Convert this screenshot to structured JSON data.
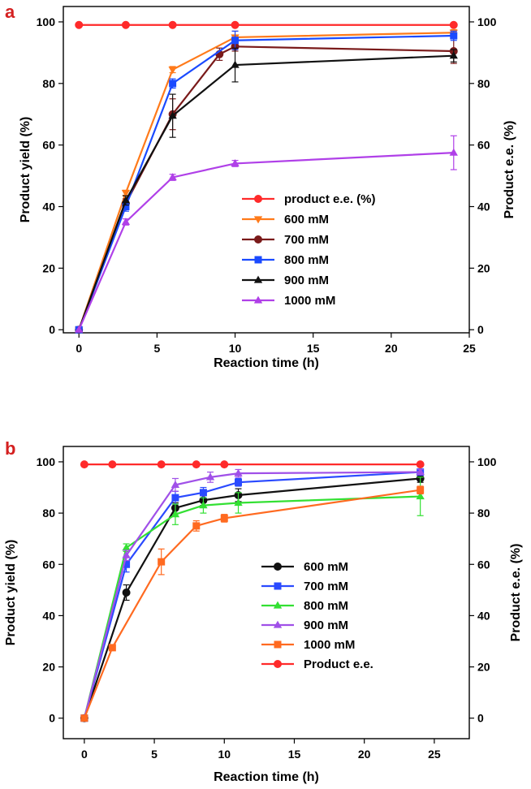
{
  "chart_data": [
    {
      "type": "line",
      "panel_label": "a",
      "xlabel": "Reaction time (h)",
      "ylabel": "Product yield (%)",
      "ylabel_right": "Product e.e. (%)",
      "xlim": [
        -1,
        25
      ],
      "ylim": [
        -1,
        105
      ],
      "xticks": [
        0,
        5,
        10,
        15,
        20,
        25
      ],
      "yticks": [
        0,
        20,
        40,
        60,
        80,
        100
      ],
      "yticks_right": [
        0,
        20,
        40,
        60,
        80,
        100
      ],
      "legend_position": "center-right",
      "series": [
        {
          "name": "product e.e. (%)",
          "color": "#ff2a2a",
          "marker": "circle",
          "x": [
            0,
            3,
            6,
            10,
            24
          ],
          "values": [
            99,
            99,
            99,
            99,
            99
          ],
          "err": [
            0,
            0,
            0,
            0,
            0
          ]
        },
        {
          "name": "600 mM",
          "color": "#ff7a1a",
          "marker": "triangle-down",
          "x": [
            0,
            3,
            6,
            10,
            24
          ],
          "values": [
            0,
            44.5,
            84.5,
            95,
            96.5
          ],
          "err": [
            0,
            0.8,
            1,
            2,
            1
          ]
        },
        {
          "name": "700 mM",
          "color": "#7a1a1a",
          "marker": "circle",
          "x": [
            0,
            3,
            6,
            9,
            10,
            24
          ],
          "values": [
            0,
            41,
            70,
            89.5,
            92,
            90.5
          ],
          "err": [
            0,
            1.5,
            5,
            2,
            1.5,
            4
          ]
        },
        {
          "name": "800 mM",
          "color": "#1a4aff",
          "marker": "square",
          "x": [
            0,
            3,
            6,
            10,
            24
          ],
          "values": [
            0,
            40,
            80,
            94,
            95.5
          ],
          "err": [
            0,
            1.5,
            1.5,
            3,
            1.5
          ]
        },
        {
          "name": "900 mM",
          "color": "#111111",
          "marker": "triangle-up",
          "x": [
            0,
            3,
            6,
            10,
            24
          ],
          "values": [
            0,
            42,
            69.5,
            86,
            89
          ],
          "err": [
            0,
            1.5,
            7,
            5.5,
            2
          ]
        },
        {
          "name": "1000 mM",
          "color": "#b040e8",
          "marker": "triangle-up",
          "x": [
            0,
            3,
            6,
            10,
            24
          ],
          "values": [
            0,
            35,
            49.5,
            54,
            57.5
          ],
          "err": [
            0,
            1,
            1,
            1,
            5.5
          ]
        }
      ]
    },
    {
      "type": "line",
      "panel_label": "b",
      "xlabel": "Reaction time (h)",
      "ylabel": "Product yield (%)",
      "ylabel_right": "Product e.e. (%)",
      "xlim": [
        -1.5,
        27.5
      ],
      "ylim": [
        -8,
        106
      ],
      "xticks": [
        0,
        5,
        10,
        15,
        20,
        25
      ],
      "yticks": [
        0,
        20,
        40,
        60,
        80,
        100
      ],
      "yticks_right": [
        0,
        20,
        40,
        60,
        80,
        100
      ],
      "legend_position": "center-right",
      "series": [
        {
          "name": "600 mM",
          "color": "#111111",
          "marker": "circle",
          "x": [
            0,
            3,
            6.5,
            8.5,
            11,
            24
          ],
          "values": [
            0,
            49,
            82,
            85,
            87,
            93.5
          ],
          "err": [
            0,
            3,
            2,
            2,
            2.5,
            1.5
          ]
        },
        {
          "name": "700 mM",
          "color": "#2a4aff",
          "marker": "square",
          "x": [
            0,
            3,
            6.5,
            8.5,
            11,
            24
          ],
          "values": [
            0,
            60,
            86,
            88,
            92,
            96
          ],
          "err": [
            0,
            3,
            2.5,
            2,
            1.5,
            1
          ]
        },
        {
          "name": "800 mM",
          "color": "#33e033",
          "marker": "triangle-up",
          "x": [
            0,
            3,
            6.5,
            8.5,
            11,
            24
          ],
          "values": [
            0,
            66.5,
            79.5,
            83,
            84,
            86.5
          ],
          "err": [
            0,
            1.5,
            4,
            3,
            4,
            7.5
          ]
        },
        {
          "name": "900 mM",
          "color": "#a050e8",
          "marker": "triangle-up",
          "x": [
            0,
            3,
            6.5,
            9,
            11,
            24
          ],
          "values": [
            0,
            63.5,
            91,
            94,
            95.5,
            96
          ],
          "err": [
            0,
            2,
            2.5,
            2,
            1.5,
            1
          ]
        },
        {
          "name": "1000 mM",
          "color": "#ff6a20",
          "marker": "square",
          "x": [
            0,
            2,
            5.5,
            8,
            10,
            24
          ],
          "values": [
            0,
            27.5,
            61,
            75,
            78,
            89
          ],
          "err": [
            0,
            0.8,
            5,
            2,
            1.5,
            1.5
          ]
        },
        {
          "name": "Product e.e.",
          "color": "#ff2a2a",
          "marker": "circle",
          "x": [
            0,
            2,
            5.5,
            8,
            10,
            24
          ],
          "values": [
            99,
            99,
            99,
            99,
            99,
            99
          ],
          "err": [
            0,
            0,
            0,
            0,
            0,
            0
          ]
        }
      ]
    }
  ]
}
